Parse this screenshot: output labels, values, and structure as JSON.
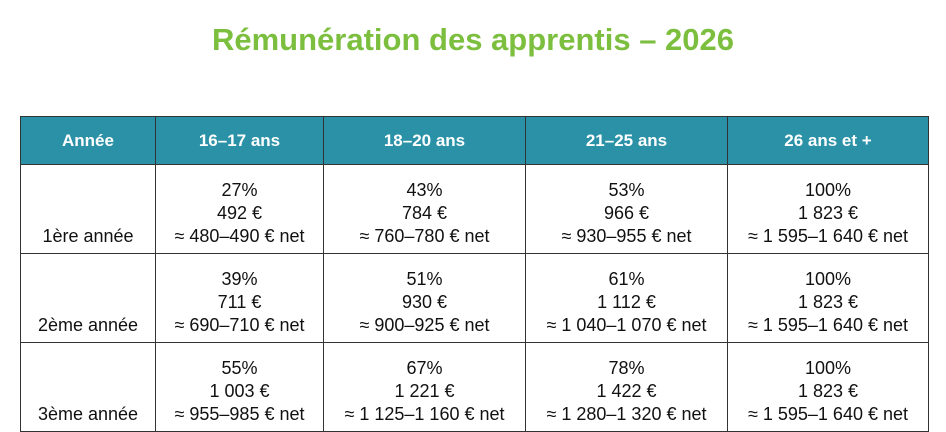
{
  "header": {
    "title": "Rémunération des apprentis – 2026"
  },
  "table": {
    "columns": [
      "Année",
      "16–17 ans",
      "18–20 ans",
      "21–25 ans",
      "26 ans et +"
    ],
    "rows": [
      {
        "label": "1ère année",
        "cells": [
          [
            "27%",
            "492 €",
            "≈ 480–490 € net"
          ],
          [
            "43%",
            "784 €",
            "≈ 760–780 € net"
          ],
          [
            "53%",
            "966 €",
            "≈ 930–955 € net"
          ],
          [
            "100%",
            "1 823 €",
            "≈ 1 595–1 640 € net"
          ]
        ]
      },
      {
        "label": "2ème année",
        "cells": [
          [
            "39%",
            "711 €",
            "≈ 690–710 € net"
          ],
          [
            "51%",
            "930 €",
            "≈ 900–925 € net"
          ],
          [
            "61%",
            "1 112 €",
            "≈ 1 040–1 070 € net"
          ],
          [
            "100%",
            "1 823 €",
            "≈ 1 595–1 640 € net"
          ]
        ]
      },
      {
        "label": "3ème année",
        "cells": [
          [
            "55%",
            "1 003 €",
            "≈ 955–985 € net"
          ],
          [
            "67%",
            "1 221 €",
            "≈ 1 125–1 160 € net"
          ],
          [
            "78%",
            "1 422 €",
            "≈ 1 280–1 320 € net"
          ],
          [
            "100%",
            "1 823 €",
            "≈ 1 595–1 640 € net"
          ]
        ]
      }
    ]
  }
}
